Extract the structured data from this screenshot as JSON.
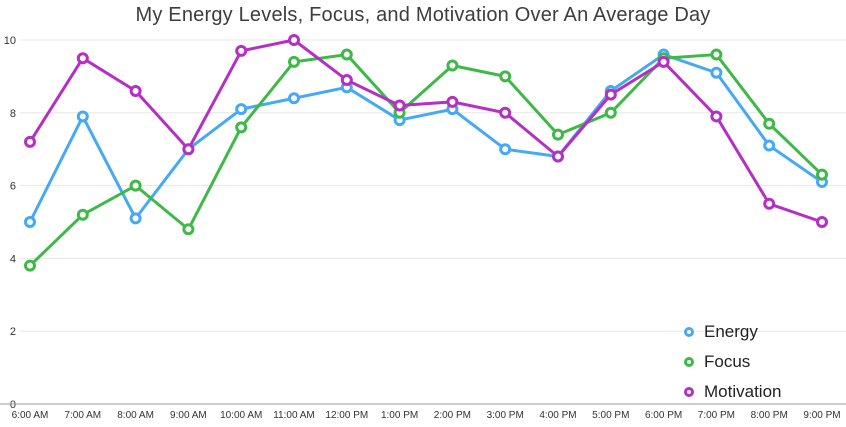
{
  "chart_data": {
    "type": "line",
    "title": "My Energy Levels, Focus, and Motivation Over An Average Day",
    "x_labels": [
      "6:00 AM",
      "7:00 AM",
      "8:00 AM",
      "9:00 AM",
      "10:00 AM",
      "11:00 AM",
      "12:00 PM",
      "1:00 PM",
      "2:00 PM",
      "3:00 PM",
      "4:00 PM",
      "5:00 PM",
      "6:00 PM",
      "7:00 PM",
      "8:00 PM",
      "9:00 PM"
    ],
    "y_ticks": [
      0,
      2,
      4,
      6,
      8,
      10
    ],
    "ylim": [
      0,
      10
    ],
    "grid": true,
    "legend_position": "bottom-right",
    "colors": {
      "grid": "#e7e7e7",
      "axis": "#9a9a9a",
      "tick_text": "#333333"
    },
    "series": [
      {
        "name": "Energy",
        "color": "#45a9f5",
        "values": [
          5.0,
          7.9,
          5.1,
          7.0,
          8.1,
          8.4,
          8.7,
          7.8,
          8.1,
          7.0,
          6.8,
          8.6,
          9.6,
          9.1,
          7.1,
          6.1
        ]
      },
      {
        "name": "Focus",
        "color": "#3eb948",
        "values": [
          3.8,
          5.2,
          6.0,
          4.8,
          7.6,
          9.4,
          9.6,
          8.0,
          9.3,
          9.0,
          7.4,
          8.0,
          9.5,
          9.6,
          7.7,
          6.3
        ]
      },
      {
        "name": "Motivation",
        "color": "#b62fc4",
        "values": [
          7.2,
          9.5,
          8.6,
          7.0,
          9.7,
          10.0,
          8.9,
          8.2,
          8.3,
          8.0,
          6.8,
          8.5,
          9.4,
          7.9,
          5.5,
          5.0
        ]
      }
    ]
  }
}
